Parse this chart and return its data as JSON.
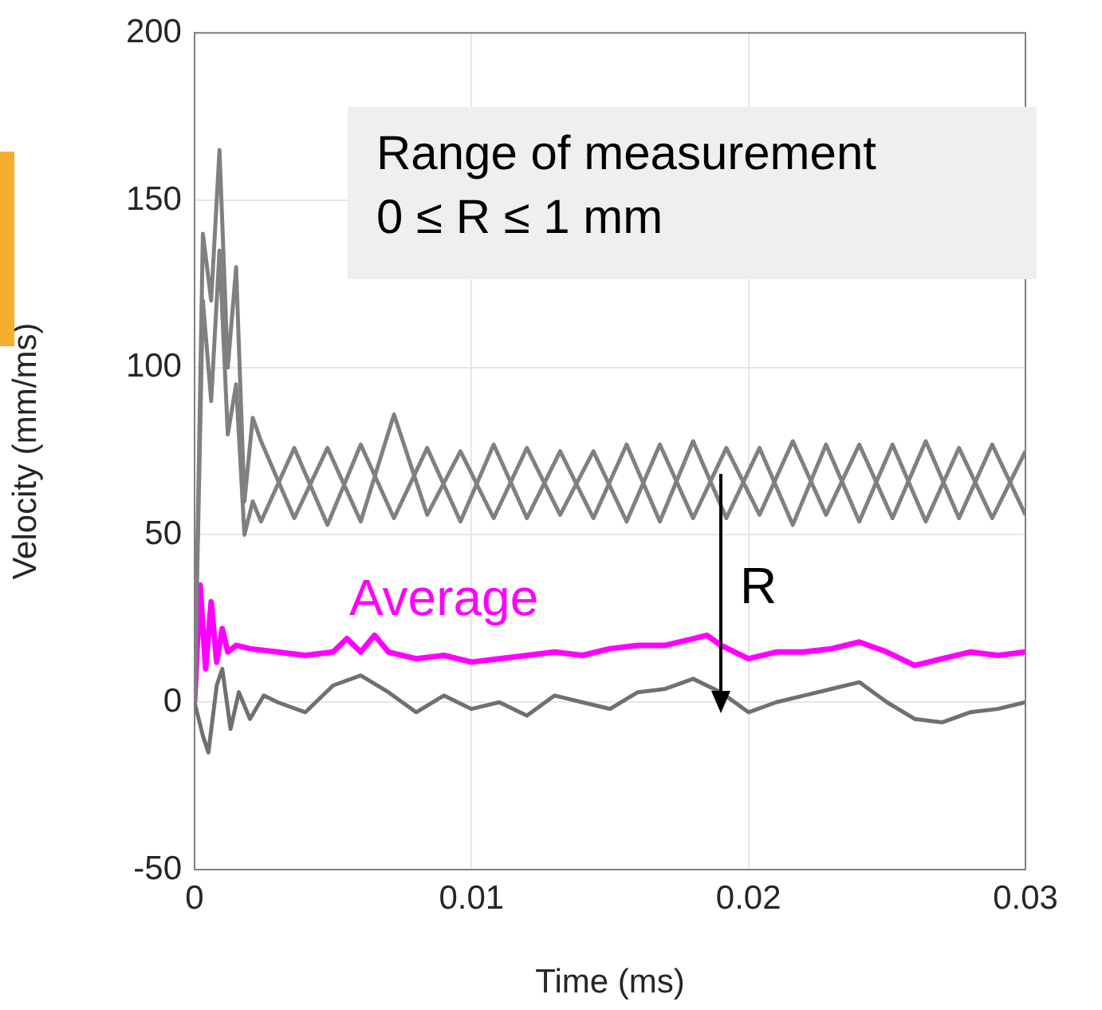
{
  "chart_data": {
    "type": "line",
    "xlabel": "Time (ms)",
    "ylabel": "Velocity (mm/ms)",
    "xlim": [
      0,
      0.03
    ],
    "xticks": [
      0,
      0.01,
      0.02,
      0.03
    ],
    "ylim": [
      -50,
      200
    ],
    "yticks": [
      -50,
      0,
      50,
      100,
      150,
      200
    ],
    "grid": true,
    "legend": false,
    "marker": "none",
    "line_style": "solid",
    "series": [
      {
        "color": "#808080",
        "x": [
          0,
          0.0003,
          0.0006,
          0.0009,
          0.0012,
          0.0015,
          0.0018,
          0.0021,
          0.0024,
          0.0036,
          0.0048,
          0.006,
          0.0072,
          0.0084,
          0.0096,
          0.0108,
          0.012,
          0.0132,
          0.0144,
          0.0156,
          0.0168,
          0.018,
          0.0192,
          0.0204,
          0.0216,
          0.0228,
          0.024,
          0.0252,
          0.0264,
          0.0276,
          0.0288,
          0.03
        ],
        "values": [
          0,
          140,
          120,
          165,
          100,
          130,
          60,
          85,
          78,
          55,
          76,
          54,
          86,
          56,
          75,
          55,
          76,
          56,
          75,
          54,
          77,
          55,
          76,
          56,
          78,
          56,
          77,
          55,
          78,
          55,
          77,
          56
        ]
      },
      {
        "color": "#808080",
        "x": [
          0,
          0.0003,
          0.0006,
          0.0009,
          0.0012,
          0.0015,
          0.0018,
          0.0021,
          0.0024,
          0.0036,
          0.0048,
          0.006,
          0.0072,
          0.0084,
          0.0096,
          0.0108,
          0.012,
          0.0132,
          0.0144,
          0.0156,
          0.0168,
          0.018,
          0.0192,
          0.0204,
          0.0216,
          0.0228,
          0.024,
          0.0252,
          0.0264,
          0.0276,
          0.0288,
          0.03
        ],
        "values": [
          0,
          120,
          90,
          135,
          80,
          95,
          50,
          60,
          54,
          76,
          53,
          77,
          55,
          76,
          54,
          77,
          55,
          75,
          55,
          77,
          54,
          78,
          55,
          76,
          53,
          77,
          54,
          77,
          54,
          76,
          55,
          75
        ]
      },
      {
        "color": "#707070",
        "x": [
          0,
          0.0003,
          0.0005,
          0.0008,
          0.001,
          0.0013,
          0.0016,
          0.002,
          0.0025,
          0.003,
          0.004,
          0.005,
          0.006,
          0.007,
          0.008,
          0.009,
          0.01,
          0.011,
          0.012,
          0.013,
          0.014,
          0.015,
          0.016,
          0.017,
          0.018,
          0.019,
          0.02,
          0.021,
          0.022,
          0.023,
          0.024,
          0.025,
          0.026,
          0.027,
          0.028,
          0.029,
          0.03
        ],
        "values": [
          0,
          -10,
          -15,
          5,
          10,
          -8,
          3,
          -5,
          2,
          0,
          -3,
          5,
          8,
          3,
          -3,
          2,
          -2,
          0,
          -4,
          2,
          0,
          -2,
          3,
          4,
          7,
          3,
          -3,
          0,
          2,
          4,
          6,
          0,
          -5,
          -6,
          -3,
          -2,
          0
        ]
      },
      {
        "name": "Average",
        "color": "#ff00ff",
        "x": [
          0,
          0.0002,
          0.0004,
          0.0006,
          0.0008,
          0.001,
          0.0012,
          0.0015,
          0.002,
          0.003,
          0.004,
          0.005,
          0.0055,
          0.006,
          0.0065,
          0.007,
          0.008,
          0.009,
          0.01,
          0.011,
          0.012,
          0.013,
          0.014,
          0.015,
          0.016,
          0.017,
          0.018,
          0.0185,
          0.019,
          0.02,
          0.021,
          0.022,
          0.023,
          0.024,
          0.025,
          0.026,
          0.0265,
          0.027,
          0.028,
          0.029,
          0.03
        ],
        "values": [
          0,
          35,
          10,
          30,
          12,
          22,
          15,
          17,
          16,
          15,
          14,
          15,
          19,
          15,
          20,
          15,
          13,
          14,
          12,
          13,
          14,
          15,
          14,
          16,
          17,
          17,
          19,
          20,
          17,
          13,
          15,
          15,
          16,
          18,
          15,
          11,
          12,
          13,
          15,
          14,
          15
        ]
      }
    ],
    "annotations": [
      "Range of measurement\n0 ≤ R ≤ 1 mm",
      {
        "text": "R",
        "x": 0.019,
        "y": 68
      }
    ]
  }
}
